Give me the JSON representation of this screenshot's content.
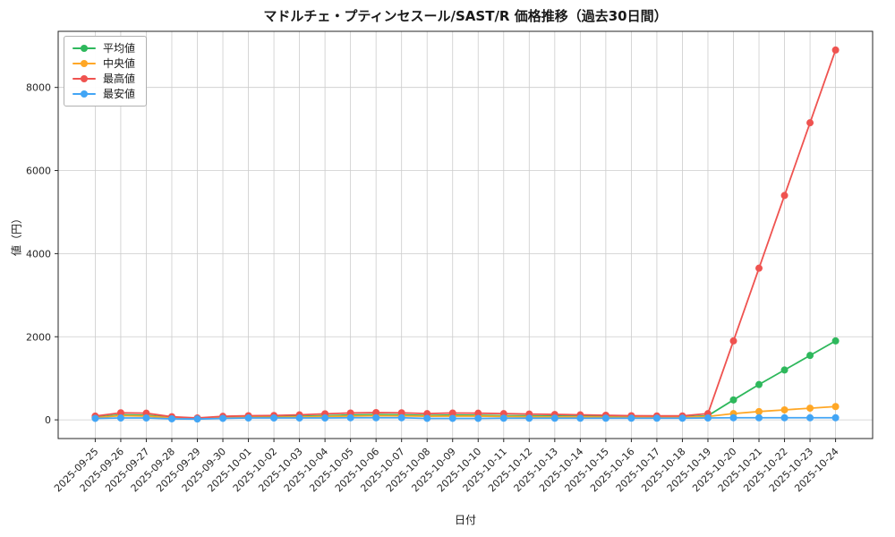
{
  "chart_data": {
    "type": "line",
    "title": "マドルチェ・プティンセスール/SAST/R 価格推移（過去30日間）",
    "xlabel": "日付",
    "ylabel": "値（円）",
    "grid": true,
    "legend_position": "upper left",
    "grid_color": "#cccccc",
    "axis_color": "#262626",
    "x": [
      "2025-09-25",
      "2025-09-26",
      "2025-09-27",
      "2025-09-28",
      "2025-09-29",
      "2025-09-30",
      "2025-10-01",
      "2025-10-02",
      "2025-10-03",
      "2025-10-04",
      "2025-10-05",
      "2025-10-06",
      "2025-10-07",
      "2025-10-08",
      "2025-10-09",
      "2025-10-10",
      "2025-10-11",
      "2025-10-12",
      "2025-10-13",
      "2025-10-14",
      "2025-10-15",
      "2025-10-16",
      "2025-10-17",
      "2025-10-18",
      "2025-10-19",
      "2025-10-20",
      "2025-10-21",
      "2025-10-22",
      "2025-10-23",
      "2025-10-24"
    ],
    "y_ticks": [
      0,
      2000,
      4000,
      6000,
      8000
    ],
    "ylim": [
      -450,
      9350
    ],
    "series": [
      {
        "id": "average",
        "name": "平均値",
        "color": "#2eb85c",
        "values": [
          60,
          120,
          110,
          55,
          35,
          60,
          75,
          75,
          85,
          100,
          115,
          125,
          120,
          105,
          115,
          110,
          100,
          95,
          90,
          85,
          80,
          75,
          70,
          70,
          100,
          480,
          850,
          1200,
          1550,
          1900
        ]
      },
      {
        "id": "median",
        "name": "中央値",
        "color": "#ffa726",
        "values": [
          50,
          100,
          90,
          45,
          30,
          50,
          60,
          60,
          70,
          80,
          90,
          100,
          95,
          85,
          90,
          90,
          80,
          75,
          70,
          70,
          65,
          60,
          60,
          60,
          80,
          150,
          200,
          240,
          280,
          320
        ]
      },
      {
        "id": "max",
        "name": "最高値",
        "color": "#ef5350",
        "values": [
          90,
          170,
          160,
          75,
          45,
          85,
          100,
          105,
          120,
          145,
          165,
          175,
          170,
          150,
          165,
          160,
          150,
          140,
          130,
          120,
          110,
          100,
          95,
          95,
          150,
          1900,
          3650,
          5400,
          7150,
          8900
        ]
      },
      {
        "id": "min",
        "name": "最安値",
        "color": "#42a5f5",
        "values": [
          35,
          45,
          45,
          25,
          20,
          35,
          45,
          45,
          45,
          45,
          50,
          50,
          50,
          35,
          35,
          35,
          40,
          40,
          40,
          40,
          40,
          40,
          40,
          40,
          45,
          50,
          50,
          50,
          50,
          50
        ]
      }
    ]
  }
}
